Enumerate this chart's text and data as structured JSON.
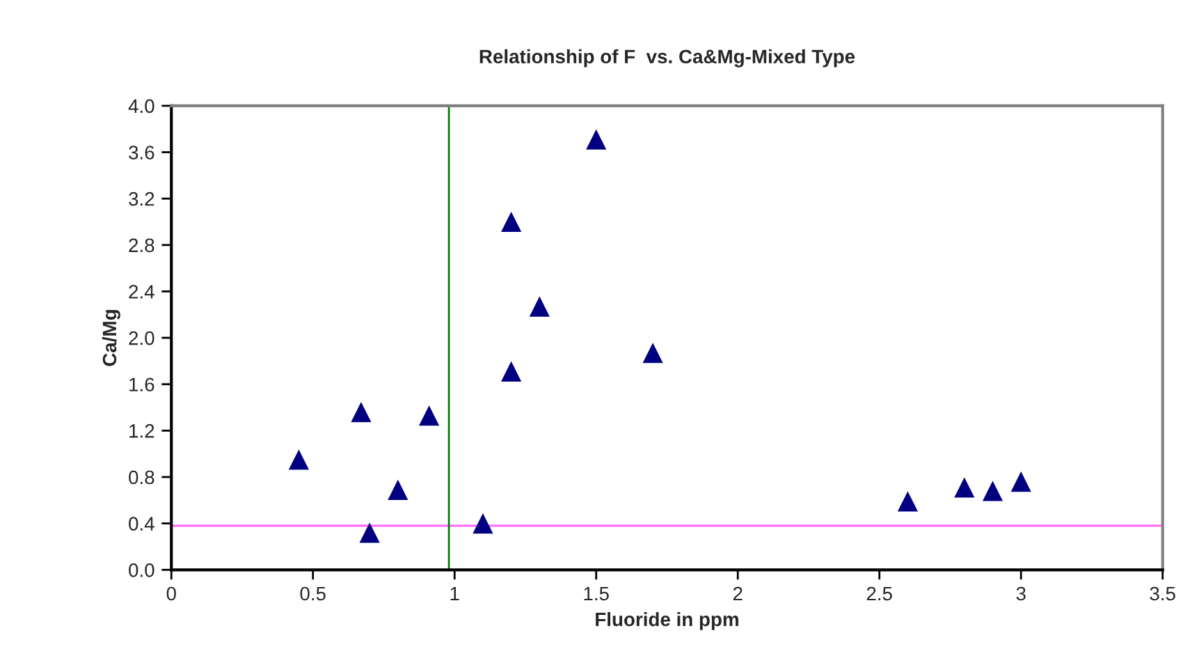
{
  "chart_data": {
    "type": "scatter",
    "title": "Relationship of F  vs. Ca&Mg-Mixed Type",
    "xlabel": "Fluoride in ppm",
    "ylabel": "Ca/Mg",
    "x": [
      0.45,
      0.67,
      0.91,
      0.8,
      0.7,
      1.1,
      1.2,
      1.3,
      1.2,
      1.5,
      1.7,
      2.6,
      2.8,
      2.9,
      3.0
    ],
    "series": [
      {
        "color": "#000080",
        "values": [
          0.95,
          1.36,
          1.33,
          0.69,
          0.32,
          0.4,
          1.71,
          2.27,
          3.0,
          3.71,
          1.87,
          0.59,
          0.71,
          0.68,
          0.76
        ]
      }
    ],
    "marker": "triangle",
    "xlim": [
      0,
      3.5
    ],
    "xticks": [
      0,
      0.5,
      1,
      1.5,
      2,
      2.5,
      3,
      3.5
    ],
    "ylim": [
      0,
      4.0
    ],
    "yticks": [
      {
        "value": 0,
        "label": "0.0"
      },
      {
        "value": 0.4,
        "label": "0.4"
      },
      {
        "value": 0.8,
        "label": "0.8"
      },
      {
        "value": 1.2,
        "label": "1.2"
      },
      {
        "value": 1.6,
        "label": "1.6"
      },
      {
        "value": 2.0,
        "label": "2.0"
      },
      {
        "value": 2.4,
        "label": "2.4"
      },
      {
        "value": 2.8,
        "label": "2.8"
      },
      {
        "value": 3.2,
        "label": "3.2"
      },
      {
        "value": 3.6,
        "label": "3.6"
      },
      {
        "value": 4.0,
        "label": "4.0"
      }
    ],
    "ref_lines": [
      {
        "axis": "y",
        "value": 0.38,
        "color": "#ff66ff"
      },
      {
        "axis": "x",
        "value": 0.98,
        "color": "#008000"
      }
    ],
    "grid": false,
    "legend": false
  }
}
